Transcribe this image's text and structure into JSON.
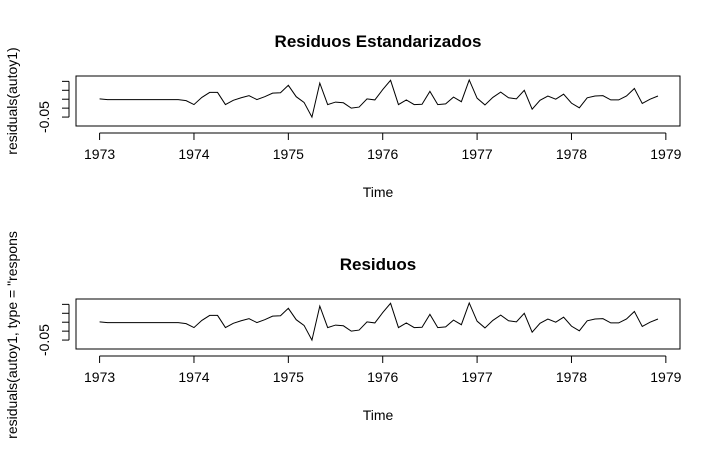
{
  "chart_data": [
    {
      "type": "line",
      "title": "Residuos Estandarizados",
      "xlabel": "Time",
      "ylabel": "residuals(autoy1)",
      "xlim": [
        1972.75,
        1979.15
      ],
      "ylim": [
        -0.075,
        0.065
      ],
      "x_ticks": [
        1973,
        1974,
        1975,
        1976,
        1977,
        1978,
        1979
      ],
      "x_tick_labels": [
        "1973",
        "1974",
        "1975",
        "1976",
        "1977",
        "1978",
        "1979"
      ],
      "y_ticks": [
        -0.05,
        -0.025,
        0,
        0.025,
        0.05
      ],
      "y_tick_labels": [
        "-0.05",
        "",
        "",
        "",
        ""
      ],
      "grid": false,
      "x_start": 1973,
      "x_step": 0.0833333,
      "values": [
        0.001,
        -0.001,
        -0.001,
        -0.001,
        -0.001,
        -0.001,
        -0.001,
        -0.001,
        -0.001,
        -0.001,
        -0.001,
        -0.004,
        -0.015,
        0.005,
        0.019,
        0.019,
        -0.015,
        -0.003,
        0.004,
        0.01,
        -0.001,
        0.007,
        0.017,
        0.018,
        0.039,
        0.007,
        -0.009,
        -0.05,
        0.045,
        -0.015,
        -0.008,
        -0.01,
        -0.025,
        -0.022,
        0.001,
        -0.002,
        0.027,
        0.053,
        -0.015,
        -0.002,
        -0.015,
        -0.014,
        0.022,
        -0.015,
        -0.013,
        0.006,
        -0.007,
        0.054,
        0.003,
        -0.016,
        0.005,
        0.02,
        0.004,
        0.001,
        0.025,
        -0.028,
        -0.003,
        0.009,
        0.0,
        0.014,
        -0.011,
        -0.024,
        0.004,
        0.009,
        0.01,
        -0.002,
        -0.002,
        0.009,
        0.03,
        -0.012,
        0.0,
        0.009
      ]
    },
    {
      "type": "line",
      "title": "Residuos",
      "xlabel": "Time",
      "ylabel": "residuals(autoy1, type = \"respons",
      "xlim": [
        1972.75,
        1979.15
      ],
      "ylim": [
        -0.075,
        0.065
      ],
      "x_ticks": [
        1973,
        1974,
        1975,
        1976,
        1977,
        1978,
        1979
      ],
      "x_tick_labels": [
        "1973",
        "1974",
        "1975",
        "1976",
        "1977",
        "1978",
        "1979"
      ],
      "y_ticks": [
        -0.05,
        -0.025,
        0,
        0.025,
        0.05
      ],
      "y_tick_labels": [
        "-0.05",
        "",
        "",
        "",
        ""
      ],
      "grid": false,
      "x_start": 1973,
      "x_step": 0.0833333,
      "values": [
        0.001,
        -0.001,
        -0.001,
        -0.001,
        -0.001,
        -0.001,
        -0.001,
        -0.001,
        -0.001,
        -0.001,
        -0.001,
        -0.004,
        -0.015,
        0.005,
        0.019,
        0.019,
        -0.015,
        -0.003,
        0.004,
        0.01,
        -0.001,
        0.007,
        0.017,
        0.018,
        0.039,
        0.007,
        -0.009,
        -0.05,
        0.045,
        -0.015,
        -0.008,
        -0.01,
        -0.025,
        -0.022,
        0.001,
        -0.002,
        0.027,
        0.053,
        -0.015,
        -0.002,
        -0.015,
        -0.014,
        0.022,
        -0.015,
        -0.013,
        0.006,
        -0.007,
        0.054,
        0.003,
        -0.016,
        0.005,
        0.02,
        0.004,
        0.001,
        0.025,
        -0.028,
        -0.003,
        0.009,
        0.0,
        0.014,
        -0.011,
        -0.024,
        0.004,
        0.009,
        0.01,
        -0.002,
        -0.002,
        0.009,
        0.03,
        -0.012,
        0.0,
        0.009
      ]
    }
  ]
}
